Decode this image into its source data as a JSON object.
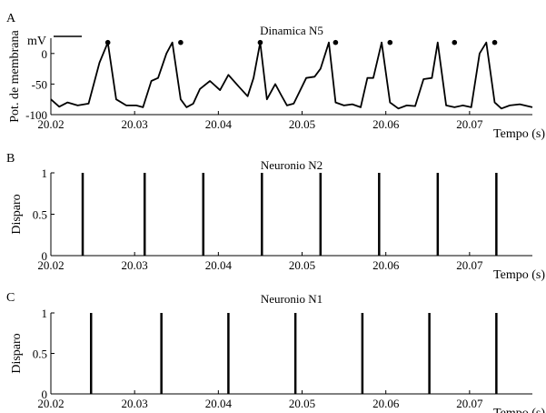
{
  "chart_data": [
    {
      "panel": "A",
      "type": "line",
      "title": "Dinamica N5",
      "xlabel": "Tempo (s)",
      "ylabel": "Pot. de membrana",
      "unit": "mV",
      "xlim": [
        20.02,
        20.0775
      ],
      "ylim": [
        -100,
        25
      ],
      "x_ticks": [
        20.02,
        20.03,
        20.04,
        20.05,
        20.06,
        20.07
      ],
      "x_tick_labels": [
        "20.02",
        "20.03",
        "20.04",
        "20.05",
        "20.06",
        "20.07"
      ],
      "y_ticks": [
        0,
        -50,
        -100
      ],
      "y_tick_labels": [
        "0",
        "-50",
        "-100"
      ],
      "series": [
        {
          "x": [
            20.02,
            20.021,
            20.022,
            20.0232,
            20.0245,
            20.0258,
            20.0268,
            20.0278,
            20.029,
            20.0302,
            20.031,
            20.032,
            20.0328,
            20.0338,
            20.0345,
            20.0355,
            20.0362,
            20.037,
            20.0378,
            20.039,
            20.0402,
            20.0412,
            20.0425,
            20.0435,
            20.0442,
            20.045,
            20.0458,
            20.0468,
            20.0475,
            20.0482,
            20.049,
            20.0505,
            20.0515,
            20.0522,
            20.0532,
            20.054,
            20.055,
            20.056,
            20.057,
            20.0578,
            20.0585,
            20.0595,
            20.0605,
            20.0615,
            20.0625,
            20.0635,
            20.0645,
            20.0655,
            20.0662,
            20.0672,
            20.0682,
            20.0692,
            20.0702,
            20.0712,
            20.072,
            20.073,
            20.0738,
            20.0748,
            20.076,
            20.0775
          ],
          "y": [
            -75,
            -87,
            -80,
            -85,
            -82,
            -15,
            18,
            -75,
            -85,
            -85,
            -88,
            -45,
            -40,
            0,
            18,
            -75,
            -88,
            -82,
            -58,
            -45,
            -60,
            -35,
            -55,
            -70,
            -40,
            18,
            -75,
            -50,
            -68,
            -85,
            -82,
            -40,
            -38,
            -25,
            18,
            -80,
            -85,
            -83,
            -88,
            -40,
            -40,
            18,
            -80,
            -90,
            -85,
            -86,
            -42,
            -40,
            18,
            -85,
            -88,
            -85,
            -88,
            0,
            18,
            -80,
            -90,
            -85,
            -83,
            -88
          ]
        }
      ],
      "spike_markers": {
        "x": [
          20.0268,
          20.0355,
          20.045,
          20.054,
          20.0605,
          20.0682,
          20.073
        ],
        "y": [
          18,
          18,
          18,
          18,
          18,
          18,
          18
        ]
      }
    },
    {
      "panel": "B",
      "type": "bar",
      "title": "Neuronio N2",
      "xlabel": "Tempo (s)",
      "ylabel": "Disparo",
      "xlim": [
        20.02,
        20.0775
      ],
      "ylim": [
        0,
        1
      ],
      "x_ticks": [
        20.02,
        20.03,
        20.04,
        20.05,
        20.06,
        20.07
      ],
      "x_tick_labels": [
        "20.02",
        "20.03",
        "20.04",
        "20.05",
        "20.06",
        "20.07"
      ],
      "y_ticks": [
        0,
        0.5,
        1
      ],
      "y_tick_labels": [
        "0",
        "0.5",
        "1"
      ],
      "spike_times": [
        20.0238,
        20.0312,
        20.0382,
        20.0452,
        20.0522,
        20.0592,
        20.0662,
        20.0732
      ],
      "spike_height": 1
    },
    {
      "panel": "C",
      "type": "bar",
      "title": "Neuronio N1",
      "xlabel": "Tempo (s)",
      "ylabel": "Disparo",
      "xlim": [
        20.02,
        20.0775
      ],
      "ylim": [
        0,
        1
      ],
      "x_ticks": [
        20.02,
        20.03,
        20.04,
        20.05,
        20.06,
        20.07
      ],
      "x_tick_labels": [
        "20.02",
        "20.03",
        "20.04",
        "20.05",
        "20.06",
        "20.07"
      ],
      "y_ticks": [
        0,
        0.5,
        1
      ],
      "y_tick_labels": [
        "0",
        "0.5",
        "1"
      ],
      "spike_times": [
        20.0248,
        20.0332,
        20.0412,
        20.0492,
        20.0572,
        20.0652,
        20.0732
      ],
      "spike_height": 1
    }
  ]
}
